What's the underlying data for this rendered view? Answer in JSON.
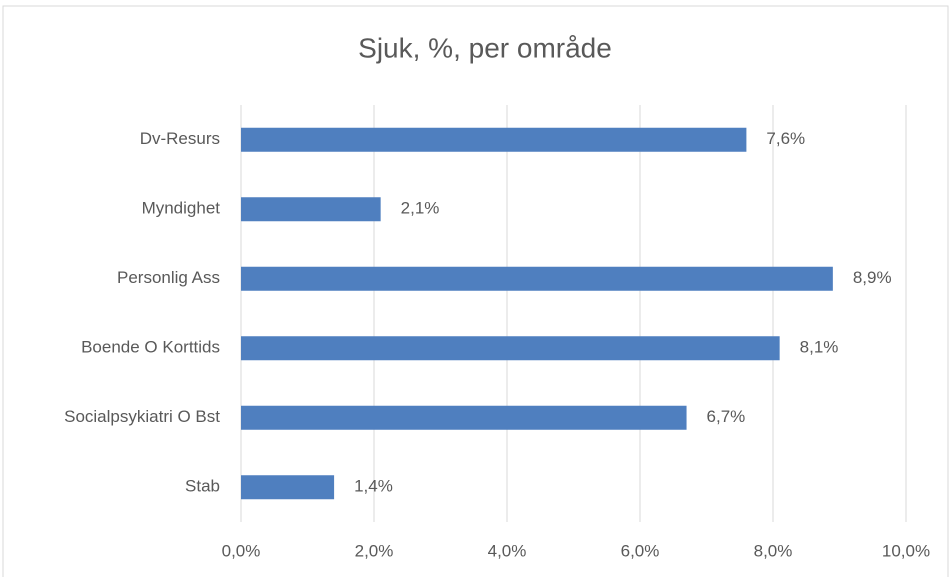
{
  "chart_data": {
    "type": "bar",
    "orientation": "horizontal",
    "title": "Sjuk, %, per område",
    "categories": [
      "Dv-Resurs",
      "Myndighet",
      "Personlig Ass",
      "Boende O Korttids",
      "Socialpsykiatri O Bst",
      "Stab"
    ],
    "values": [
      7.6,
      2.1,
      8.9,
      8.1,
      6.7,
      1.4
    ],
    "value_labels": [
      "7,6%",
      "2,1%",
      "8,9%",
      "8,1%",
      "6,7%",
      "1,4%"
    ],
    "color": "#4f7fbf",
    "xlim": [
      0,
      10
    ],
    "xticks": [
      {
        "value": 0,
        "label": "0,0%"
      },
      {
        "value": 2,
        "label": "2,0%"
      },
      {
        "value": 4,
        "label": "4,0%"
      },
      {
        "value": 6,
        "label": "6,0%"
      },
      {
        "value": 8,
        "label": "8,0%"
      },
      {
        "value": 10,
        "label": "10,0%"
      }
    ],
    "grid": true
  }
}
